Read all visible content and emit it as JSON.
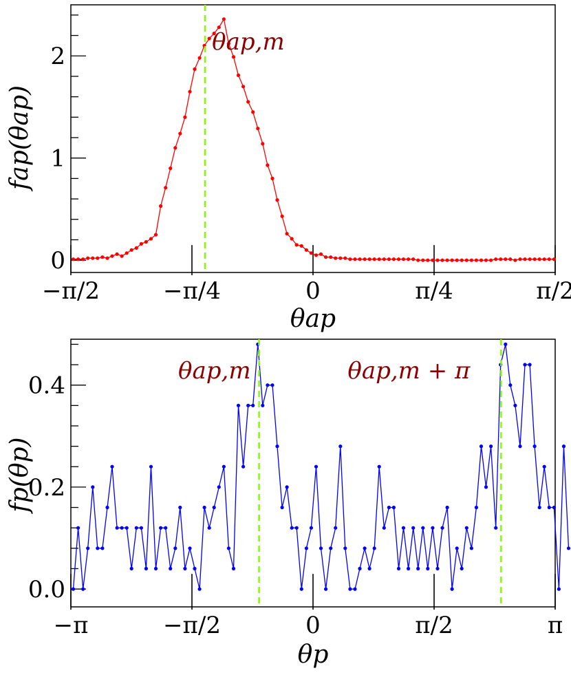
{
  "colors": {
    "series_top": "#ff0000",
    "series_bottom": "#0000ff",
    "marker_line": "#7fff00",
    "annotation": "#8b0000",
    "axes": "#000000"
  },
  "chart_data": [
    {
      "type": "line",
      "xlabel": "θap",
      "ylabel": "fap(θap)",
      "xlim": [
        -1.5708,
        1.5708
      ],
      "ylim": [
        -0.12,
        2.5
      ],
      "xticks": [
        {
          "value": -1.5708,
          "label": "−π/2"
        },
        {
          "value": -0.7854,
          "label": "−π/4"
        },
        {
          "value": 0,
          "label": "0"
        },
        {
          "value": 0.7854,
          "label": "π/4"
        },
        {
          "value": 1.5708,
          "label": "π/2"
        }
      ],
      "yticks": [
        {
          "value": 0,
          "label": "0"
        },
        {
          "value": 1,
          "label": "1"
        },
        {
          "value": 2,
          "label": "2"
        }
      ],
      "vlines": [
        {
          "x": -0.7,
          "label": "θap,m"
        }
      ],
      "series": [
        {
          "marker": "dot",
          "x_start": -1.555,
          "x_step": 0.0315,
          "values": [
            0.01,
            0.01,
            0.01,
            0.02,
            0.02,
            0.02,
            0.03,
            0.02,
            0.04,
            0.06,
            0.04,
            0.07,
            0.1,
            0.12,
            0.16,
            0.18,
            0.21,
            0.25,
            0.53,
            0.71,
            0.9,
            1.1,
            1.24,
            1.4,
            1.65,
            1.87,
            1.98,
            2.1,
            2.17,
            2.22,
            2.28,
            2.36,
            2.12,
            1.99,
            1.81,
            1.7,
            1.55,
            1.45,
            1.29,
            1.14,
            0.93,
            0.8,
            0.59,
            0.43,
            0.26,
            0.21,
            0.15,
            0.14,
            0.1,
            0.07,
            0.05,
            0.06,
            0.03,
            0.03,
            0.02,
            0.02,
            0.02,
            0.01,
            0.01,
            0.01,
            0.01,
            0.01,
            0.01,
            0.01,
            0.01,
            0.01,
            0.01,
            0.01,
            0.01,
            0.01,
            0.01,
            0.0,
            0.0,
            0.0,
            0.0,
            0.0,
            0.0,
            0.0,
            0.0,
            0.0,
            0.0,
            0.0,
            0.0,
            0.0,
            0.0,
            0.0,
            0.0,
            0.01,
            0.01,
            0.01,
            0.01,
            0.0,
            0.01,
            0.01,
            0.01,
            0.01,
            0.01,
            0.01,
            0.01,
            0.01
          ]
        }
      ]
    },
    {
      "type": "line",
      "xlabel": "θp",
      "ylabel": "fp(θp)",
      "xlim": [
        -3.1416,
        3.1416
      ],
      "ylim": [
        -0.035,
        0.49
      ],
      "xticks": [
        {
          "value": -3.1416,
          "label": "−π"
        },
        {
          "value": -1.5708,
          "label": "−π/2"
        },
        {
          "value": 0,
          "label": "0"
        },
        {
          "value": 1.5708,
          "label": "π/2"
        },
        {
          "value": 3.1416,
          "label": "π"
        }
      ],
      "yticks": [
        {
          "value": 0,
          "label": "0.0"
        },
        {
          "value": 0.2,
          "label": "0.2"
        },
        {
          "value": 0.4,
          "label": "0.4"
        }
      ],
      "vlines": [
        {
          "x": -0.7,
          "label": "θap,m"
        },
        {
          "x": 2.44,
          "label": "θap,m + π"
        }
      ],
      "series": [
        {
          "marker": "dot",
          "x_start": -3.11,
          "x_step": 0.063,
          "values": [
            0.0,
            0.12,
            0.0,
            0.08,
            0.2,
            0.08,
            0.08,
            0.16,
            0.24,
            0.12,
            0.12,
            0.12,
            0.04,
            0.12,
            0.12,
            0.04,
            0.24,
            0.04,
            0.12,
            0.12,
            0.04,
            0.08,
            0.16,
            0.04,
            0.08,
            0.04,
            0.0,
            0.16,
            0.12,
            0.16,
            0.2,
            0.24,
            0.08,
            0.04,
            0.36,
            0.24,
            0.36,
            0.36,
            0.48,
            0.36,
            0.4,
            0.4,
            0.28,
            0.16,
            0.2,
            0.12,
            0.12,
            0.0,
            0.08,
            0.12,
            0.24,
            0.08,
            0.0,
            0.08,
            0.12,
            0.28,
            0.08,
            0.0,
            0.0,
            0.04,
            0.08,
            0.04,
            0.08,
            0.24,
            0.12,
            0.16,
            0.16,
            0.04,
            0.12,
            0.04,
            0.12,
            0.04,
            0.12,
            0.04,
            0.12,
            0.04,
            0.12,
            0.16,
            0.0,
            0.08,
            0.04,
            0.12,
            0.08,
            0.16,
            0.28,
            0.2,
            0.28,
            0.12,
            0.44,
            0.48,
            0.4,
            0.36,
            0.28,
            0.44,
            0.44,
            0.28,
            0.16,
            0.24,
            0.16,
            0.16,
            0.0,
            0.28,
            0.08
          ]
        }
      ]
    }
  ]
}
